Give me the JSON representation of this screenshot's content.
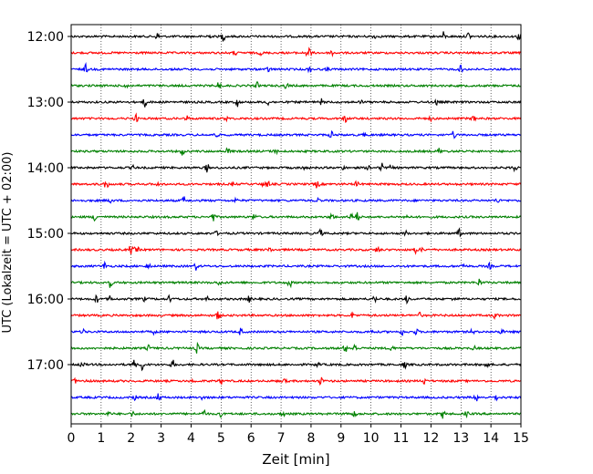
{
  "chart_data": {
    "type": "line",
    "subtype": "helicorder-seismogram",
    "xlabel": "Zeit  [min]",
    "ylabel": "UTC (Lokalzeit = UTC + 02:00)",
    "xlim": [
      0,
      15
    ],
    "x_ticks": [
      "0",
      "1",
      "2",
      "3",
      "4",
      "5",
      "6",
      "7",
      "8",
      "9",
      "10",
      "11",
      "12",
      "13",
      "14",
      "15"
    ],
    "y_ticks": [
      "12:00",
      "13:00",
      "14:00",
      "15:00",
      "16:00",
      "17:00"
    ],
    "grid": "vertical dotted lines at each minute",
    "trace_interval_min": 15,
    "trace_color_cycle": [
      "#000000",
      "#ff0000",
      "#0000ff",
      "#008000"
    ],
    "traces": [
      {
        "start": "12:00"
      },
      {
        "start": "12:15"
      },
      {
        "start": "12:30"
      },
      {
        "start": "12:45"
      },
      {
        "start": "13:00"
      },
      {
        "start": "13:15"
      },
      {
        "start": "13:30"
      },
      {
        "start": "13:45"
      },
      {
        "start": "14:00"
      },
      {
        "start": "14:15"
      },
      {
        "start": "14:30"
      },
      {
        "start": "14:45"
      },
      {
        "start": "15:00"
      },
      {
        "start": "15:15"
      },
      {
        "start": "15:30"
      },
      {
        "start": "15:45"
      },
      {
        "start": "16:00"
      },
      {
        "start": "16:15"
      },
      {
        "start": "16:30"
      },
      {
        "start": "16:45"
      },
      {
        "start": "17:00"
      },
      {
        "start": "17:15"
      },
      {
        "start": "17:30"
      },
      {
        "start": "17:45"
      }
    ]
  }
}
